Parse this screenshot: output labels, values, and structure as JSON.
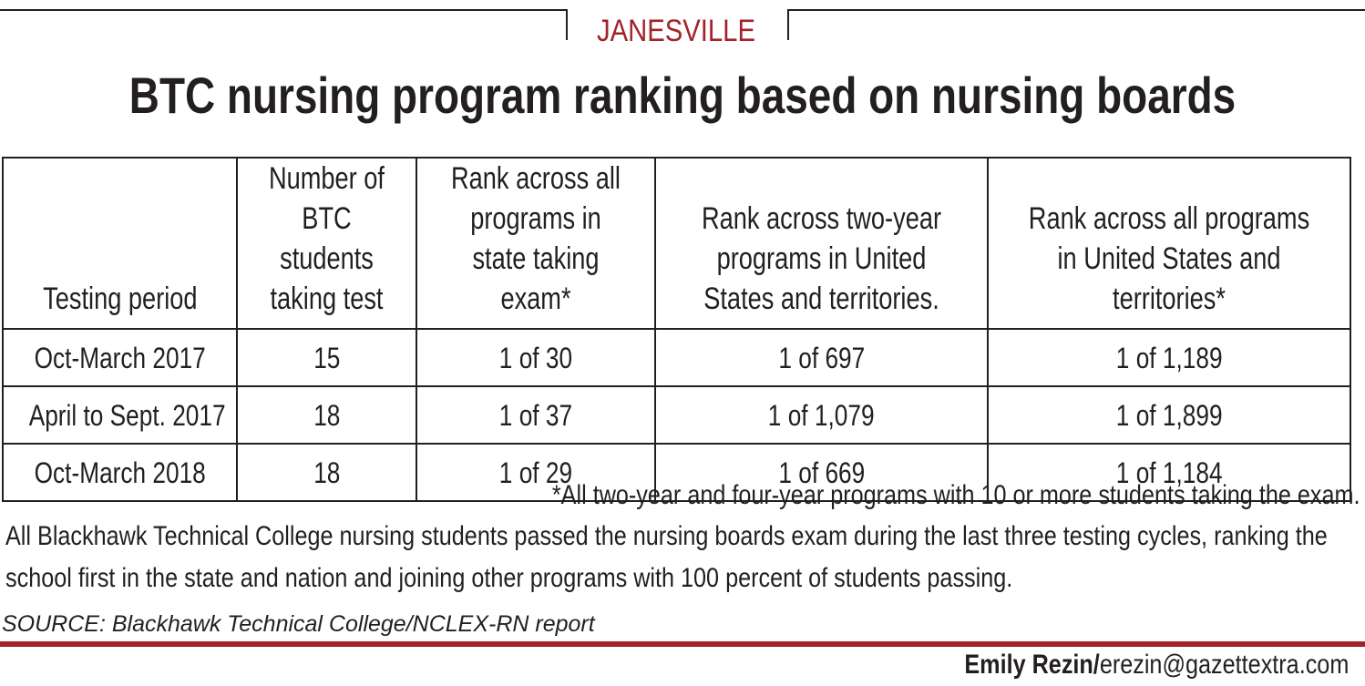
{
  "kicker": "JANESVILLE",
  "title": "BTC nursing program ranking based on nursing boards",
  "chart_data": {
    "type": "table",
    "title": "BTC nursing program ranking based on nursing boards",
    "columns": [
      "Testing period",
      "Number of BTC students taking test",
      "Rank across all programs in state taking exam*",
      "Rank across two-year programs in United States and territories.",
      "Rank across all  programs in United States and territories*"
    ],
    "rows": [
      [
        "Oct-March 2017",
        "15",
        "1 of 30",
        "1 of 697",
        "1 of 1,189"
      ],
      [
        "April to Sept. 2017",
        "18",
        "1 of 37",
        "1 of 1,079",
        "1 of 1,899"
      ],
      [
        "Oct-March 2018",
        "18",
        "1 of 29",
        "1 of 669",
        "1 of 1,184"
      ]
    ]
  },
  "footnote": "*All two-year and four-year programs with 10 or more students taking the exam.",
  "summary": "All Blackhawk Technical College nursing students passed the nursing boards exam during the last three testing cycles, ranking the school first in the state and nation and joining other programs with 100 percent of students passing.",
  "source": "SOURCE: Blackhawk Technical College/NCLEX-RN report",
  "credit": {
    "name": "Emily Rezin/",
    "email": "erezin@gazettextra.com"
  },
  "colors": {
    "accent": "#a3232b",
    "text": "#231f20"
  }
}
